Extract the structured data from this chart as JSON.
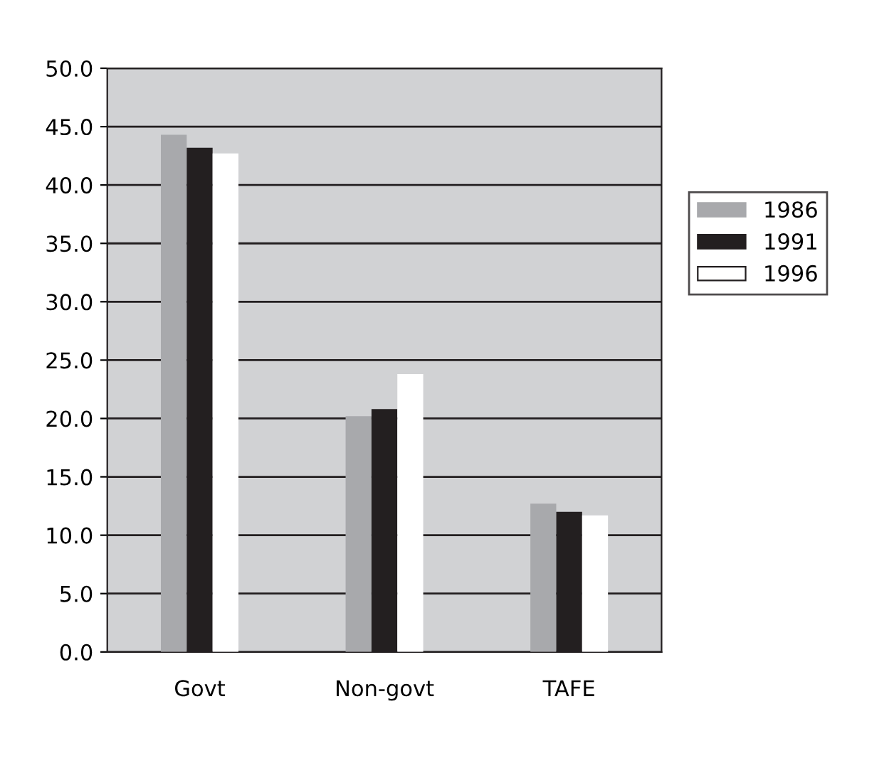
{
  "chart_data": {
    "type": "bar",
    "categories": [
      "Govt",
      "Non-govt",
      "TAFE"
    ],
    "series": [
      {
        "name": "1986",
        "color": "#a8a9ac",
        "values": [
          44.3,
          20.2,
          12.7
        ]
      },
      {
        "name": "1991",
        "color": "#231f20",
        "values": [
          43.2,
          20.8,
          12.0
        ]
      },
      {
        "name": "1996",
        "color": "#ffffff",
        "values": [
          42.7,
          23.8,
          11.7
        ]
      }
    ],
    "ylim": [
      0,
      50
    ],
    "yticks": [
      {
        "value": 0,
        "label": "0.0"
      },
      {
        "value": 5,
        "label": "5.0"
      },
      {
        "value": 10,
        "label": "10.0"
      },
      {
        "value": 15,
        "label": "15.0"
      },
      {
        "value": 20,
        "label": "20.0"
      },
      {
        "value": 25,
        "label": "25.0"
      },
      {
        "value": 30,
        "label": "30.0"
      },
      {
        "value": 35,
        "label": "35.0"
      },
      {
        "value": 40,
        "label": "40.0"
      },
      {
        "value": 45,
        "label": "45.0"
      },
      {
        "value": 50,
        "label": "50.0"
      }
    ],
    "grid": "y",
    "legend": "right"
  }
}
